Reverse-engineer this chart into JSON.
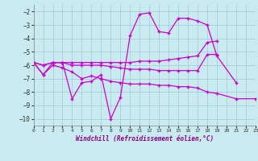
{
  "xlabel": "Windchill (Refroidissement éolien,°C)",
  "background_color": "#c8eaf0",
  "grid_color": "#a0c8d8",
  "line_color": "#cc00cc",
  "xmin": 0,
  "xmax": 23,
  "ymin": -10.5,
  "ymax": -1.5,
  "yticks": [
    -10,
    -9,
    -8,
    -7,
    -6,
    -5,
    -4,
    -3,
    -2
  ],
  "series": [
    {
      "x": [
        0,
        1,
        2,
        3,
        4,
        5,
        6,
        7,
        8,
        9,
        10,
        11,
        12,
        13,
        14,
        15,
        16,
        17,
        18,
        19,
        21
      ],
      "y": [
        -5.8,
        -6.7,
        -5.8,
        -5.8,
        -8.5,
        -7.3,
        -7.2,
        -6.7,
        -10.0,
        -8.4,
        -3.8,
        -2.2,
        -2.1,
        -3.5,
        -3.6,
        -2.5,
        -2.5,
        -2.7,
        -3.0,
        -5.3,
        -7.3
      ]
    },
    {
      "x": [
        0,
        1,
        2,
        3,
        4,
        5,
        6,
        7,
        8,
        9,
        10,
        11,
        12,
        13,
        14,
        15,
        16,
        17,
        18,
        19
      ],
      "y": [
        -5.8,
        -6.0,
        -5.8,
        -5.8,
        -5.8,
        -5.8,
        -5.8,
        -5.8,
        -5.8,
        -5.8,
        -5.8,
        -5.7,
        -5.7,
        -5.7,
        -5.6,
        -5.5,
        -5.4,
        -5.3,
        -4.3,
        -4.2
      ]
    },
    {
      "x": [
        0,
        1,
        2,
        3,
        4,
        5,
        6,
        7,
        8,
        9,
        10,
        11,
        12,
        13,
        14,
        15,
        16,
        17,
        18,
        19
      ],
      "y": [
        -5.8,
        -6.0,
        -5.8,
        -5.8,
        -6.0,
        -6.0,
        -6.0,
        -6.0,
        -6.1,
        -6.2,
        -6.3,
        -6.3,
        -6.3,
        -6.4,
        -6.4,
        -6.4,
        -6.4,
        -6.4,
        -5.2,
        -5.2
      ]
    },
    {
      "x": [
        0,
        1,
        2,
        3,
        4,
        5,
        6,
        7,
        8,
        9,
        10,
        11,
        12,
        13,
        14,
        15,
        16,
        17,
        18,
        19,
        21,
        23
      ],
      "y": [
        -5.8,
        -6.7,
        -6.0,
        -6.2,
        -6.5,
        -7.0,
        -6.8,
        -7.0,
        -7.2,
        -7.3,
        -7.4,
        -7.4,
        -7.4,
        -7.5,
        -7.5,
        -7.6,
        -7.6,
        -7.7,
        -8.0,
        -8.1,
        -8.5,
        -8.5
      ]
    }
  ]
}
